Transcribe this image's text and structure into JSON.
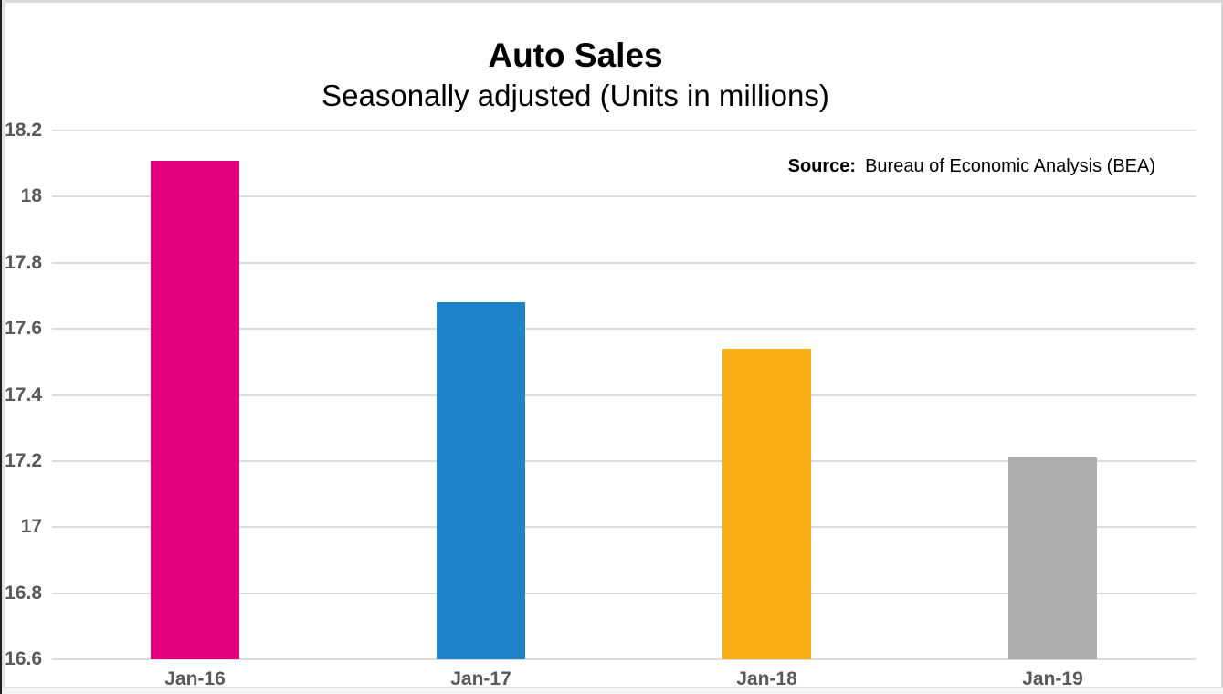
{
  "chart_data": {
    "type": "bar",
    "title": "Auto Sales",
    "subtitle": "Seasonally adjusted (Units in millions)",
    "source_label": "Source:",
    "source_text": "Bureau of Economic Analysis (BEA)",
    "categories": [
      "Jan-16",
      "Jan-17",
      "Jan-18",
      "Jan-19"
    ],
    "values": [
      18.11,
      17.68,
      17.54,
      17.21
    ],
    "bar_colors": [
      "#e5007d",
      "#1e82c8",
      "#fbaf17",
      "#acacac"
    ],
    "xlabel": "",
    "ylabel": "",
    "ylim": [
      16.6,
      18.2
    ],
    "yticks": [
      16.6,
      16.8,
      17.0,
      17.2,
      17.4,
      17.6,
      17.8,
      18.0,
      18.2
    ],
    "ytick_labels": [
      "16.6",
      "16.8",
      "17",
      "17.2",
      "17.4",
      "17.6",
      "17.8",
      "18",
      "18.2"
    ],
    "grid": true,
    "gridline_color": "#dcdcdc",
    "axis_label_color": "#595959",
    "legend": "none"
  }
}
